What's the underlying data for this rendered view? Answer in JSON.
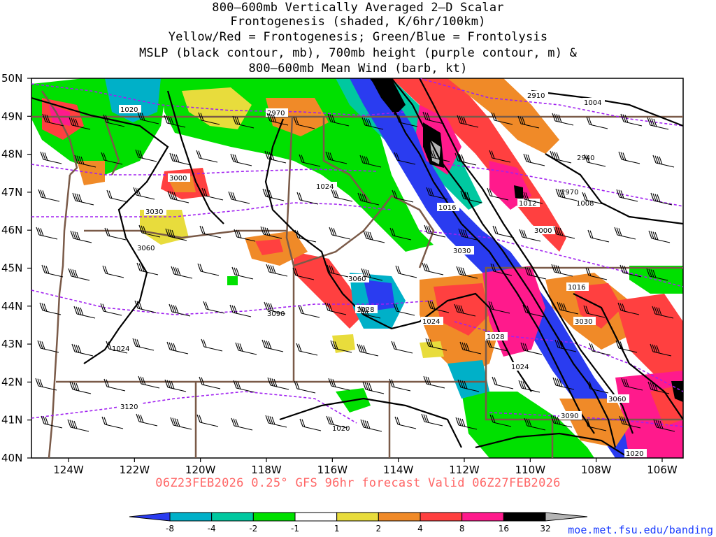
{
  "title": {
    "line1": "800–600mb Vertically Averaged 2–D Scalar",
    "line2": "Frontogenesis (shaded, K/6hr/100km)",
    "line3": "Yellow/Red = Frontogenesis;  Green/Blue = Frontolysis",
    "line4": "MSLP (black contour, mb), 700mb height (purple contour, m) &",
    "line5": "800–600mb Mean Wind (barb, kt)"
  },
  "footer": "06Z23FEB2026 0.25° GFS 96hr forecast Valid 06Z27FEB2026",
  "url": "moe.met.fsu.edu/banding",
  "axes": {
    "lat_labels": [
      "50N",
      "49N",
      "48N",
      "47N",
      "46N",
      "45N",
      "44N",
      "43N",
      "42N",
      "41N",
      "40N"
    ],
    "lon_labels": [
      "124W",
      "122W",
      "120W",
      "118W",
      "116W",
      "114W",
      "112W",
      "110W",
      "108W",
      "106W"
    ]
  },
  "mslp_labels": [
    "1020",
    "1024",
    "1028",
    "1024",
    "1016",
    "1012",
    "1008",
    "1004",
    "1016",
    "1024",
    "1028",
    "1024",
    "1020",
    "1020"
  ],
  "height_labels": [
    "2910",
    "2970",
    "2940",
    "2970",
    "3000",
    "3030",
    "3060",
    "3060",
    "3090",
    "3120",
    "3060",
    "3090",
    "3030",
    "3000",
    "3030"
  ],
  "colorbar": {
    "labels": [
      "-8",
      "-4",
      "-2",
      "-1",
      "1",
      "2",
      "4",
      "8",
      "16",
      "32"
    ],
    "colors": {
      "b_lt_-8": "#2a3cf0",
      "b_-8_-4": "#00b0c8",
      "b_-4_-2": "#00c8a0",
      "b_-2_-1": "#00e000",
      "b_-1_1": "#ffffff",
      "b_1_2": "#e8dc3c",
      "b_2_4": "#f08a28",
      "b_4_8": "#ff4040",
      "b_8_16": "#ff1a8c",
      "b_16_32": "#000000",
      "b_gt_32": "#b4b4b4"
    }
  }
}
